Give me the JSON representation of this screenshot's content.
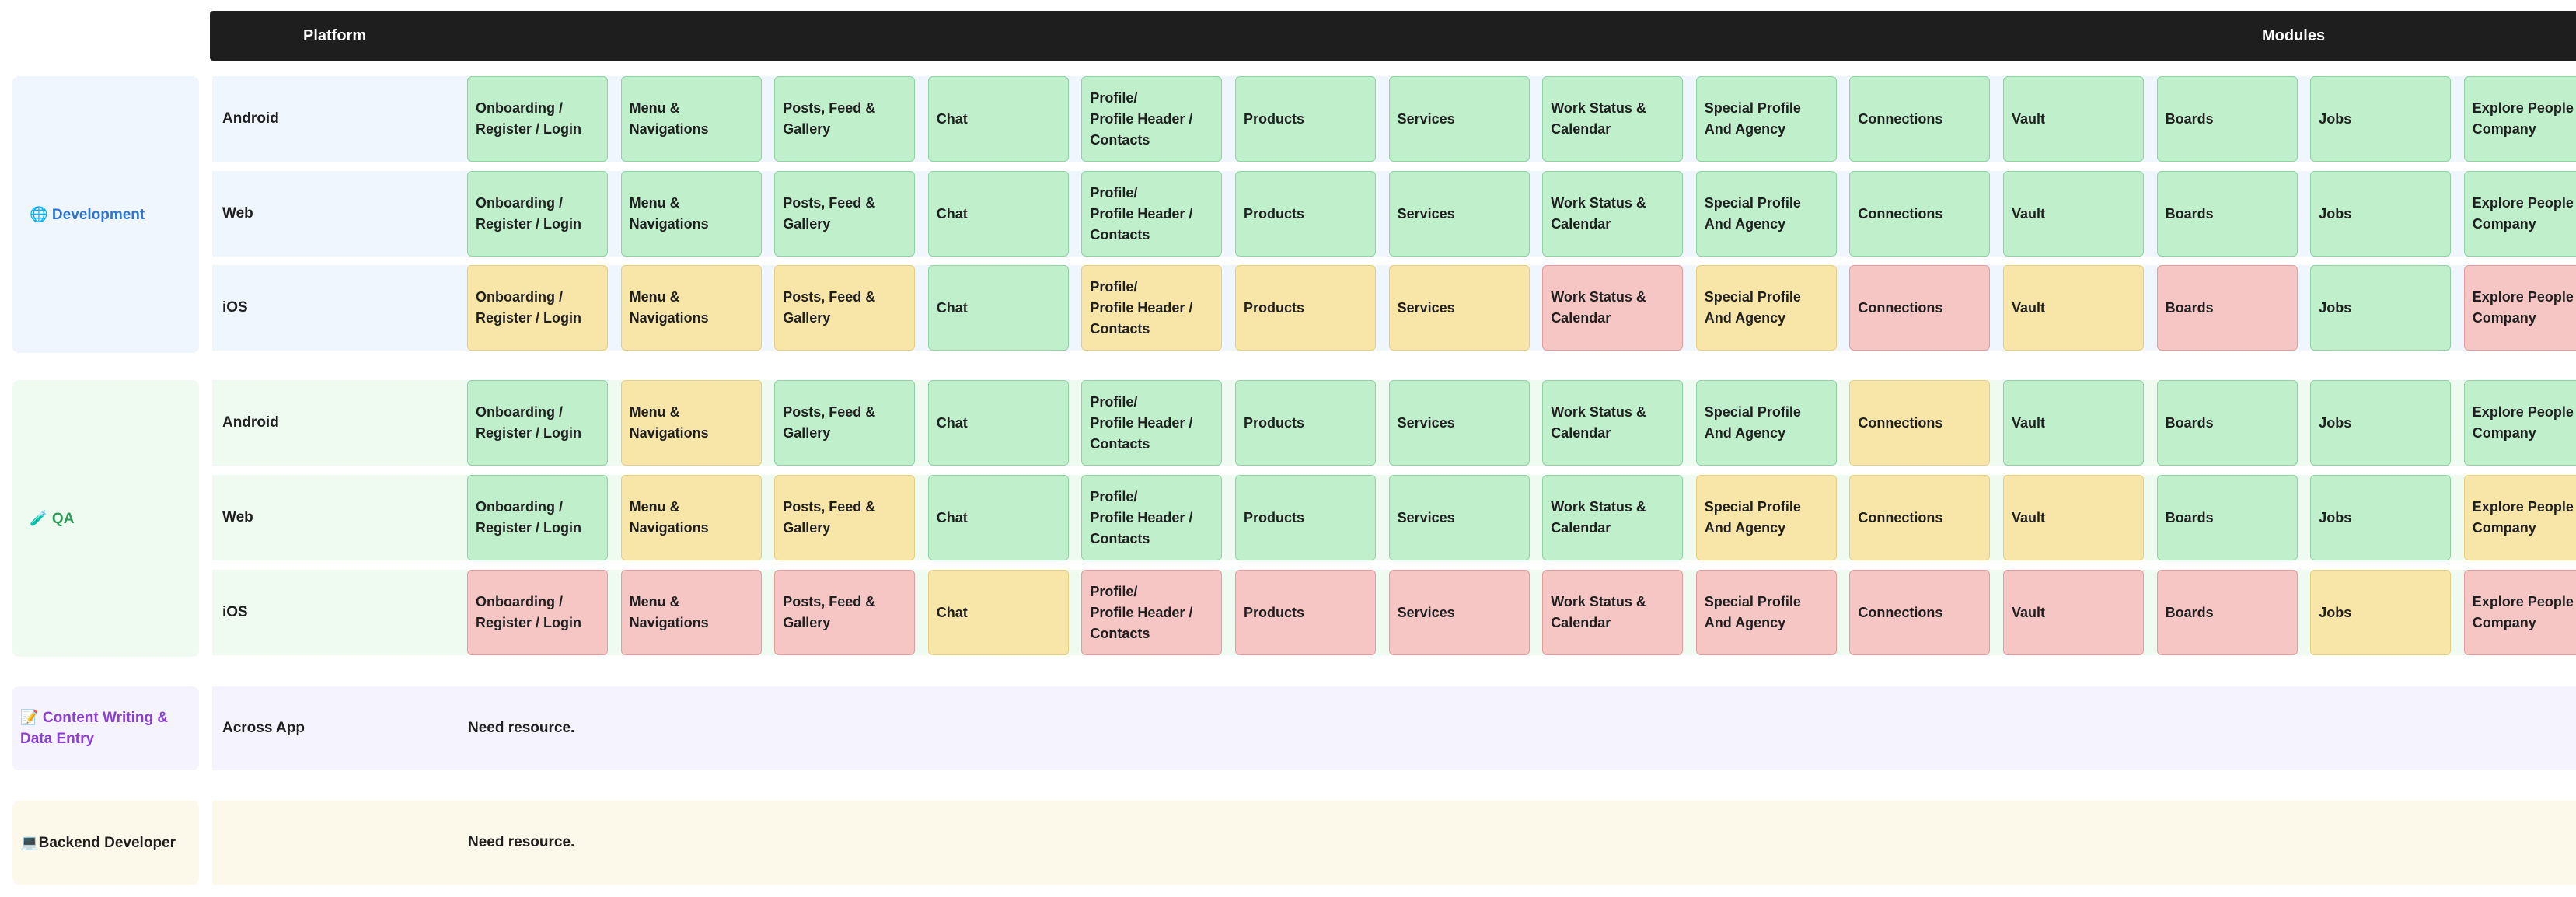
{
  "header": {
    "platform_label": "Platform",
    "modules_label": "Modules"
  },
  "status_colors": {
    "green": {
      "fill": "#bff0cb",
      "border": "#8fd3a2"
    },
    "yellow": {
      "fill": "#f8e6a9",
      "border": "#e6cf7c"
    },
    "red": {
      "fill": "#f6c6c5",
      "border": "#e59c9a"
    }
  },
  "modules": [
    "Onboarding /\nRegister / Login",
    "Menu &\nNavigations",
    "Posts, Feed &\nGallery",
    "Chat",
    "Profile/\nProfile Header /\nContacts",
    "Products",
    "Services",
    "Work Status &\nCalendar",
    "Special Profile\nAnd Agency",
    "Connections",
    "Vault",
    "Boards",
    "Jobs",
    "Explore People &\nCompany"
  ],
  "sections": [
    {
      "label": "🌐 Development",
      "icon": "globe-icon",
      "label_color": "#2f74d0",
      "bg": "#f0f6fd",
      "rows": [
        {
          "platform": "Android",
          "statuses": [
            "green",
            "green",
            "green",
            "green",
            "green",
            "green",
            "green",
            "green",
            "green",
            "green",
            "green",
            "green",
            "green",
            "green"
          ]
        },
        {
          "platform": "Web",
          "statuses": [
            "green",
            "green",
            "green",
            "green",
            "green",
            "green",
            "green",
            "green",
            "green",
            "green",
            "green",
            "green",
            "green",
            "green"
          ]
        },
        {
          "platform": "iOS",
          "statuses": [
            "yellow",
            "yellow",
            "yellow",
            "green",
            "yellow",
            "yellow",
            "yellow",
            "red",
            "yellow",
            "red",
            "yellow",
            "red",
            "green",
            "red"
          ]
        }
      ]
    },
    {
      "label": "🧪 QA",
      "icon": "test-tube-icon",
      "label_color": "#2e9a57",
      "bg": "#effbf1",
      "rows": [
        {
          "platform": "Android",
          "statuses": [
            "green",
            "yellow",
            "green",
            "green",
            "green",
            "green",
            "green",
            "green",
            "green",
            "yellow",
            "green",
            "green",
            "green",
            "green"
          ]
        },
        {
          "platform": "Web",
          "statuses": [
            "green",
            "yellow",
            "yellow",
            "green",
            "green",
            "green",
            "green",
            "green",
            "yellow",
            "yellow",
            "yellow",
            "green",
            "green",
            "yellow"
          ]
        },
        {
          "platform": "iOS",
          "statuses": [
            "red",
            "red",
            "red",
            "yellow",
            "red",
            "red",
            "red",
            "red",
            "red",
            "red",
            "red",
            "red",
            "yellow",
            "red"
          ]
        }
      ]
    },
    {
      "label": "📝 Content Writing &\nData Entry",
      "icon": "memo-icon",
      "label_color": "#8a3fd1",
      "bg": "#f5f3fd",
      "platform": "Across App",
      "note": "Need resource."
    },
    {
      "label": "💻Backend Developer",
      "icon": "laptop-icon",
      "label_color": "#1f1f1f",
      "bg": "#fdf9ea",
      "platform": "",
      "note": "Need resource."
    }
  ]
}
